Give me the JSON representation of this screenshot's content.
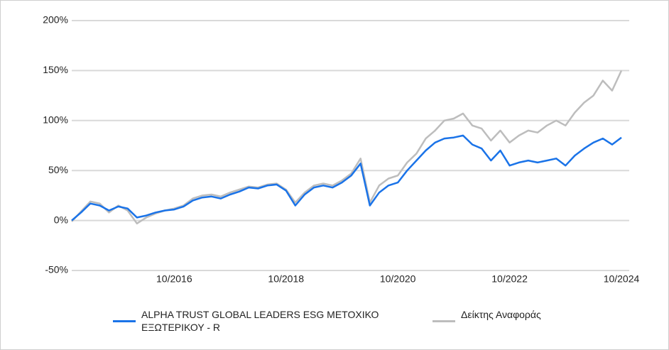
{
  "chart_data": {
    "type": "line",
    "x": [
      "12/2014",
      "02/2015",
      "04/2015",
      "06/2015",
      "08/2015",
      "10/2015",
      "12/2015",
      "02/2016",
      "04/2016",
      "06/2016",
      "08/2016",
      "10/2016",
      "12/2016",
      "02/2017",
      "04/2017",
      "06/2017",
      "08/2017",
      "10/2017",
      "12/2017",
      "02/2018",
      "04/2018",
      "06/2018",
      "08/2018",
      "10/2018",
      "12/2018",
      "02/2019",
      "04/2019",
      "06/2019",
      "08/2019",
      "10/2019",
      "12/2019",
      "02/2020",
      "04/2020",
      "06/2020",
      "08/2020",
      "10/2020",
      "12/2020",
      "02/2021",
      "04/2021",
      "06/2021",
      "08/2021",
      "10/2021",
      "12/2021",
      "02/2022",
      "04/2022",
      "06/2022",
      "08/2022",
      "10/2022",
      "12/2022",
      "02/2023",
      "04/2023",
      "06/2023",
      "08/2023",
      "10/2023",
      "12/2023",
      "02/2024",
      "04/2024",
      "06/2024",
      "08/2024",
      "10/2024"
    ],
    "series": [
      {
        "name": "ALPHA TRUST GLOBAL LEADERS ESG ΜΕΤΟΧΙΚΟ ΕΞΩΤΕΡΙΚΟΥ - R",
        "color": "#1a73e8",
        "values": [
          0,
          8,
          17,
          15,
          10,
          14,
          12,
          3,
          5,
          8,
          10,
          11,
          14,
          20,
          23,
          24,
          22,
          26,
          29,
          33,
          32,
          35,
          36,
          30,
          15,
          26,
          33,
          35,
          33,
          38,
          45,
          57,
          15,
          28,
          35,
          38,
          50,
          60,
          70,
          78,
          82,
          83,
          85,
          76,
          72,
          60,
          70,
          55,
          58,
          60,
          58,
          60,
          62,
          55,
          65,
          72,
          78,
          82,
          76,
          83
        ]
      },
      {
        "name": "Δείκτης Αναφοράς",
        "color": "#bdbdbd",
        "values": [
          -1,
          9,
          19,
          17,
          8,
          15,
          10,
          -3,
          3,
          7,
          10,
          12,
          15,
          22,
          25,
          26,
          24,
          28,
          31,
          34,
          33,
          36,
          37,
          31,
          18,
          28,
          35,
          37,
          35,
          40,
          47,
          62,
          18,
          35,
          42,
          45,
          58,
          67,
          82,
          90,
          100,
          102,
          107,
          95,
          92,
          80,
          90,
          78,
          85,
          90,
          88,
          95,
          100,
          95,
          108,
          118,
          125,
          140,
          130,
          150
        ]
      }
    ],
    "ylim": [
      -50,
      200
    ],
    "yticks": [
      {
        "value": -50,
        "label": "-50%"
      },
      {
        "value": 0,
        "label": "0%"
      },
      {
        "value": 50,
        "label": "50%"
      },
      {
        "value": 100,
        "label": "100%"
      },
      {
        "value": 150,
        "label": "150%"
      },
      {
        "value": 200,
        "label": "200%"
      }
    ],
    "xticks": [
      "10/2016",
      "10/2018",
      "10/2020",
      "10/2022",
      "10/2024"
    ],
    "grid": true,
    "legend": "bottom"
  }
}
